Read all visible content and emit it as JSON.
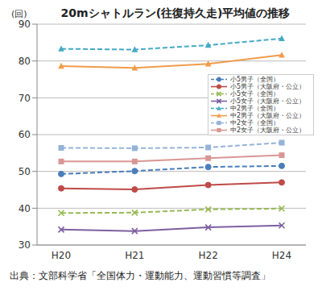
{
  "chart_data": {
    "type": "line",
    "title": "20mシャトルラン(往復持久走)平均値の推移",
    "y_label": "(回)",
    "annotations": [
      "出典：文部科学省「全国体力・運動能力、運動習慣等調査」"
    ],
    "categories": [
      "H20",
      "H21",
      "H22",
      "H24"
    ],
    "ylim": [
      30,
      90
    ],
    "yticks": [
      30,
      40,
      50,
      60,
      70,
      80,
      90
    ],
    "grid": true,
    "legend": "right",
    "series": [
      {
        "name": "小5男子（全国）",
        "color": "#4a7ebb",
        "marker": "circle",
        "line_style": "dashed",
        "values": [
          49.3,
          50.1,
          51.2,
          51.5
        ]
      },
      {
        "name": "小5男子（大阪府・公立）",
        "color": "#be4b48",
        "marker": "circle",
        "line_style": "solid",
        "values": [
          45.4,
          45.1,
          46.3,
          47.0
        ]
      },
      {
        "name": "小5女子（全国）",
        "color": "#98b954",
        "marker": "x",
        "line_style": "dashed",
        "values": [
          38.7,
          38.8,
          39.7,
          39.9
        ]
      },
      {
        "name": "小5女子（大阪府・公立）",
        "color": "#7d60a0",
        "marker": "x",
        "line_style": "solid",
        "values": [
          34.2,
          33.8,
          34.8,
          35.3
        ]
      },
      {
        "name": "中2男子（全国）",
        "color": "#46aac5",
        "marker": "triangle",
        "line_style": "dashed",
        "values": [
          83.3,
          83.1,
          84.3,
          86.1
        ]
      },
      {
        "name": "中2男子（大阪府・公立）",
        "color": "#f09c4a",
        "marker": "triangle",
        "line_style": "solid",
        "values": [
          78.6,
          78.1,
          79.2,
          81.6
        ]
      },
      {
        "name": "中2女子（全国）",
        "color": "#95b3d7",
        "marker": "square",
        "line_style": "dashed",
        "values": [
          56.4,
          56.3,
          56.5,
          57.8
        ]
      },
      {
        "name": "中2女子（大阪府・公立）",
        "color": "#d99694",
        "marker": "square",
        "line_style": "solid",
        "values": [
          52.7,
          52.7,
          53.6,
          54.4
        ]
      }
    ]
  }
}
